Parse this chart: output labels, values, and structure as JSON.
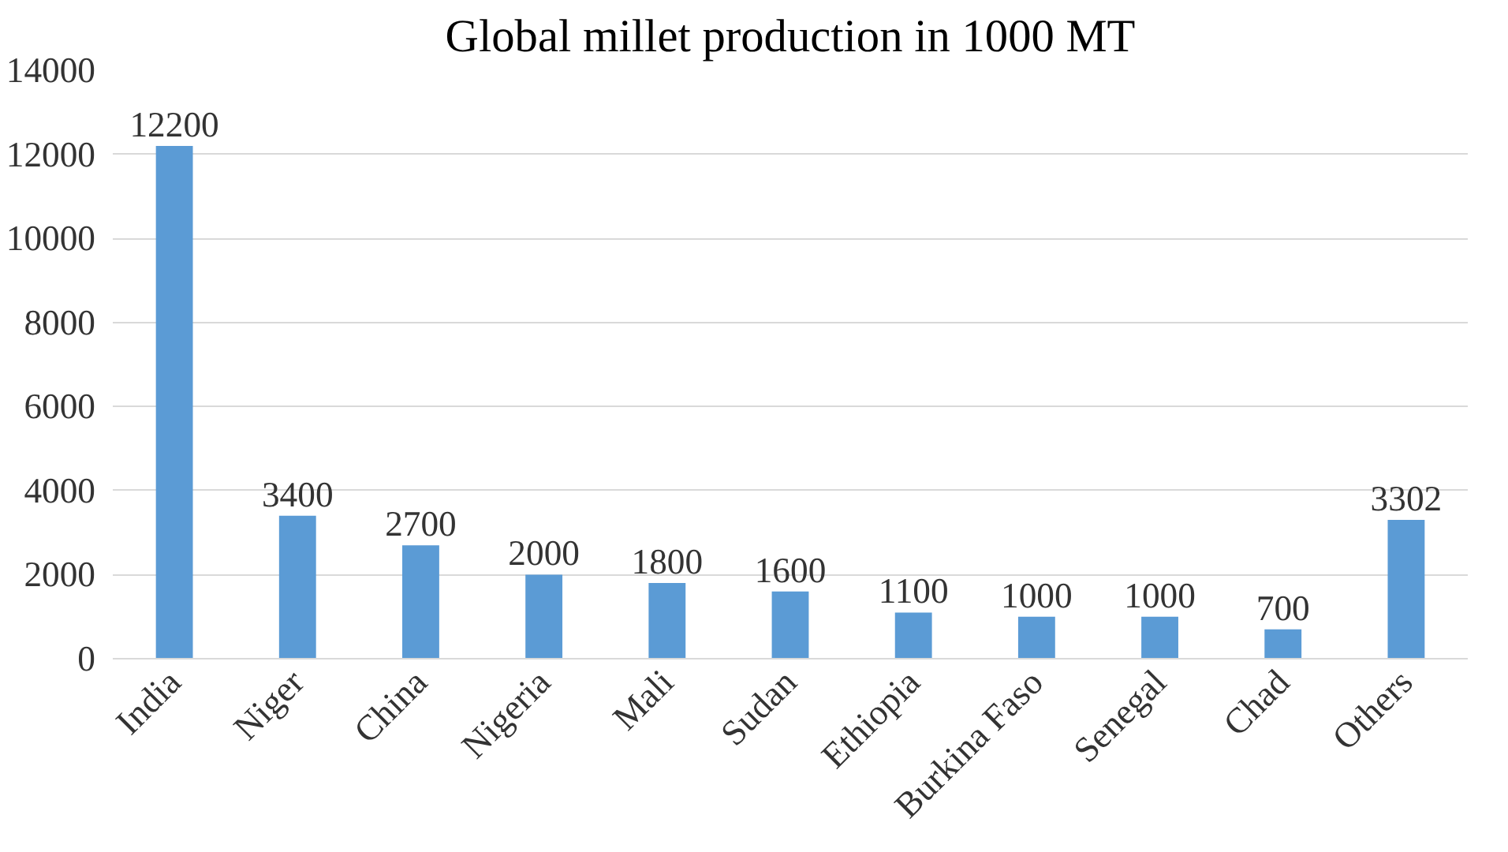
{
  "chart_data": {
    "type": "bar",
    "title": "Global millet production in 1000 MT",
    "categories": [
      "India",
      "Niger",
      "China",
      "Nigeria",
      "Mali",
      "Sudan",
      "Ethiopia",
      "Burkina Faso",
      "Senegal",
      "Chad",
      "Others"
    ],
    "values": [
      12200,
      3400,
      2700,
      2000,
      1800,
      1600,
      1100,
      1000,
      1000,
      700,
      3302
    ],
    "color": "#5b9bd5",
    "ylim": [
      0,
      14000
    ],
    "yticks": [
      0,
      2000,
      4000,
      6000,
      8000,
      10000,
      12000,
      14000
    ],
    "grid": "y",
    "data_labels": true
  }
}
